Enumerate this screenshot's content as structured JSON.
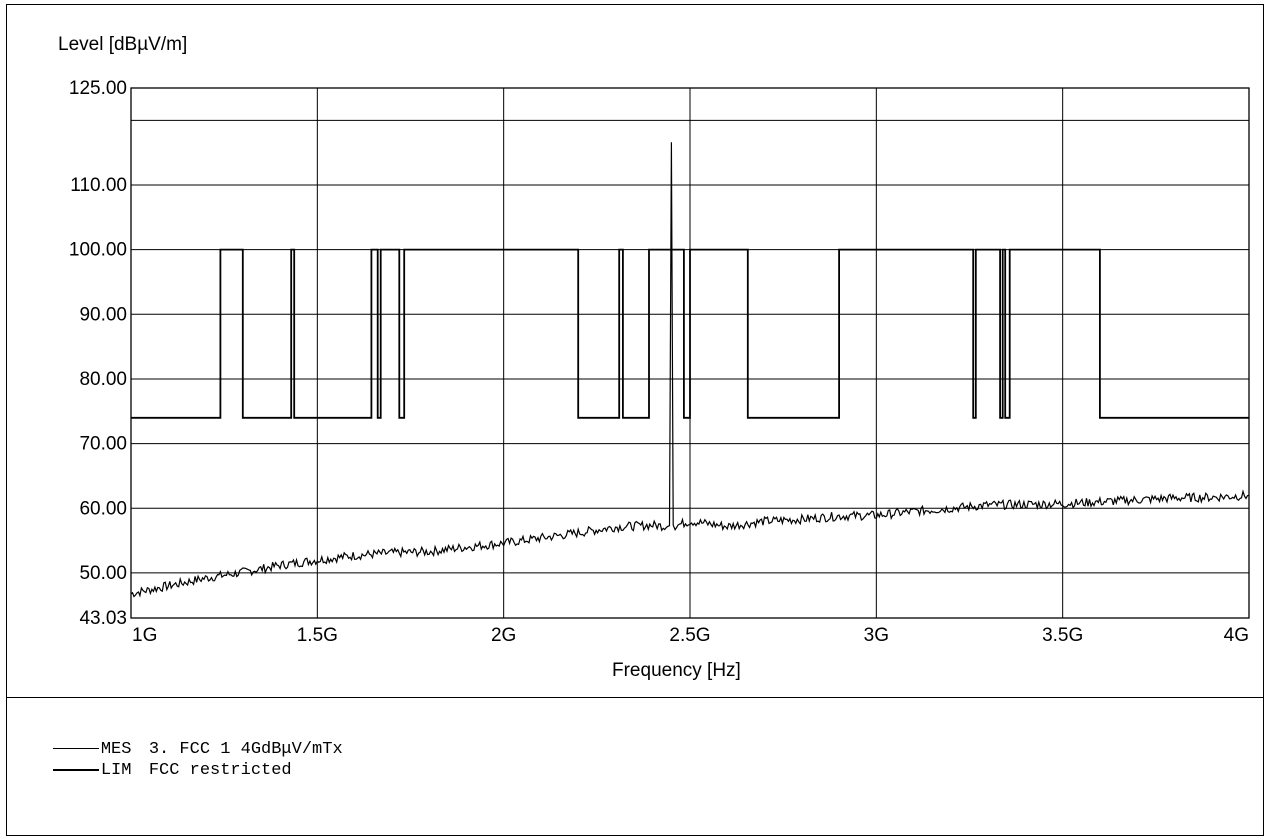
{
  "chart_data": {
    "type": "line",
    "ylabel": "Level [dBµV/m]",
    "xlabel": "Frequency [Hz]",
    "xlim": [
      1000000000,
      4000000000
    ],
    "ylim": [
      43.03,
      125
    ],
    "x_ticks": [
      1000000000,
      1500000000,
      2000000000,
      2500000000,
      3000000000,
      3500000000,
      4000000000
    ],
    "x_tick_labels": [
      "1G",
      "1.5G",
      "2G",
      "2.5G",
      "3G",
      "3.5G",
      "4G"
    ],
    "y_ticks": [
      125,
      110,
      100,
      90,
      80,
      70,
      60,
      50,
      43.03
    ],
    "y_tick_labels": [
      "125.00",
      "110.00",
      "100.00",
      "90.00",
      "80.00",
      "70.00",
      "60.00",
      "50.00",
      "43.03"
    ],
    "y_grid": [
      125,
      120,
      110,
      100,
      90,
      80,
      70,
      60,
      50
    ],
    "grid": true,
    "series": [
      {
        "name": "MES",
        "style": "thin",
        "x": [
          1000000000,
          1100000000,
          1200000000,
          1300000000,
          1400000000,
          1500000000,
          1600000000,
          1700000000,
          1800000000,
          1900000000,
          2000000000,
          2100000000,
          2200000000,
          2300000000,
          2400000000,
          2440000000,
          2445000000,
          2450000000,
          2455000000,
          2460000000,
          2500000000,
          2600000000,
          2700000000,
          2800000000,
          2900000000,
          3000000000,
          3100000000,
          3200000000,
          3300000000,
          3400000000,
          3500000000,
          3600000000,
          3700000000,
          3800000000,
          3900000000,
          4000000000
        ],
        "values": [
          46.8,
          48.0,
          49.2,
          50.1,
          51.2,
          52.0,
          52.7,
          53.1,
          53.3,
          54.0,
          54.6,
          55.4,
          56.2,
          57.1,
          57.4,
          57.2,
          57.3,
          116.6,
          57.4,
          57.3,
          58.0,
          57.2,
          58.0,
          58.3,
          58.8,
          58.9,
          59.5,
          60.0,
          60.5,
          60.6,
          60.7,
          61.0,
          61.3,
          61.6,
          61.7,
          62.0
        ]
      },
      {
        "name": "LIM",
        "style": "thick",
        "x": [
          1000000000,
          1240000000,
          1240000000,
          1300000000,
          1300000000,
          1430000000,
          1430000000,
          1438000000,
          1438000000,
          1645000000,
          1645000000,
          1662000000,
          1662000000,
          1670000000,
          1670000000,
          1720000000,
          1720000000,
          1733000000,
          1733000000,
          2200000000,
          2200000000,
          2310000000,
          2310000000,
          2320000000,
          2320000000,
          2390000000,
          2390000000,
          2483500000,
          2483500000,
          2500000000,
          2500000000,
          2655000000,
          2655000000,
          2900000000,
          2900000000,
          3260000000,
          3260000000,
          3267000000,
          3267000000,
          3332000000,
          3332000000,
          3339000000,
          3339000000,
          3345800000,
          3345800000,
          3358000000,
          3358000000,
          3600000000,
          3600000000,
          4000000000
        ],
        "values": [
          74,
          74,
          100,
          100,
          74,
          74,
          100,
          100,
          74,
          74,
          100,
          100,
          74,
          74,
          100,
          100,
          74,
          74,
          100,
          100,
          74,
          74,
          100,
          100,
          74,
          74,
          100,
          100,
          74,
          74,
          100,
          100,
          74,
          74,
          100,
          100,
          74,
          74,
          100,
          100,
          74,
          74,
          100,
          100,
          74,
          74,
          100,
          100,
          74,
          74
        ]
      }
    ]
  },
  "legend": [
    {
      "code": "MES",
      "text": "3. FCC 1 4GdBμV/mTx"
    },
    {
      "code": "LIM",
      "text": "FCC restricted"
    }
  ]
}
